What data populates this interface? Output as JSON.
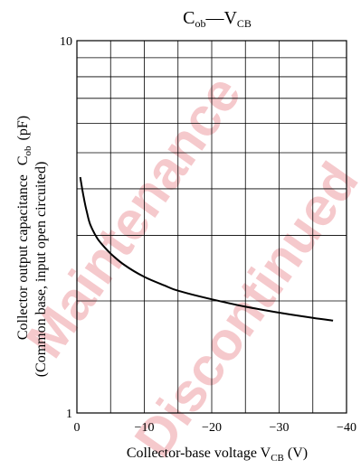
{
  "chart_data": {
    "type": "line",
    "title": {
      "main": "C",
      "main_sub": "ob",
      "dash": "—",
      "var": "V",
      "var_sub": "CB"
    },
    "xlabel": {
      "text": "Collector-base voltage  V",
      "sub": "CB",
      "unit": "  (V)"
    },
    "ylabel": {
      "line1": "Collector output capacitance",
      "line1_suffix": "C",
      "line1_suffix_sub": "ob",
      "line1_unit": "(pF)",
      "line2": "(Common base, input open circuited)"
    },
    "xlim": [
      0,
      -40
    ],
    "ylim": [
      1,
      10
    ],
    "yscale": "log",
    "grid": true,
    "x_ticks": [
      0,
      -5,
      -10,
      -15,
      -20,
      -25,
      -30,
      -35,
      -40
    ],
    "x_tick_labels": [
      {
        "value": 0,
        "label": "0"
      },
      {
        "value": -10,
        "label": "−10"
      },
      {
        "value": -20,
        "label": "−20"
      },
      {
        "value": -30,
        "label": "−30"
      },
      {
        "value": -40,
        "label": "−40"
      }
    ],
    "y_grid": [
      2,
      3,
      4,
      5,
      6,
      7,
      8,
      9
    ],
    "y_tick_labels": [
      {
        "value": 10,
        "label": "10"
      },
      {
        "value": 1,
        "label": "1"
      }
    ],
    "series": [
      {
        "x": [
          -0.5,
          -1,
          -1.5,
          -2,
          -3,
          -4,
          -5,
          -7,
          -10,
          -13,
          -15,
          -20,
          -25,
          -30,
          -35,
          -38
        ],
        "y": [
          4.3,
          3.8,
          3.45,
          3.2,
          2.95,
          2.8,
          2.68,
          2.5,
          2.32,
          2.2,
          2.13,
          2.02,
          1.93,
          1.86,
          1.8,
          1.77
        ]
      }
    ]
  },
  "watermark": {
    "line1": "Maintenance",
    "line2": "Discontinued"
  }
}
